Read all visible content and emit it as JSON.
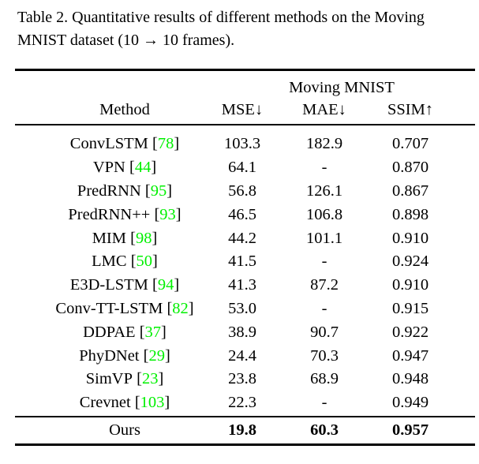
{
  "caption": {
    "lines": [
      "Table 2. Quantitative results of different methods on the Moving",
      "MNIST dataset (10 → 10 frames)."
    ]
  },
  "table": {
    "group_header": "Moving MNIST",
    "columns": {
      "method": "Method",
      "mse": "MSE↓",
      "mae": "MAE↓",
      "ssim": "SSIM↑"
    },
    "rows": [
      {
        "method": "ConvLSTM",
        "cite": "78",
        "mse": "103.3",
        "mae": "182.9",
        "ssim": "0.707"
      },
      {
        "method": "VPN",
        "cite": "44",
        "mse": "64.1",
        "mae": "-",
        "ssim": "0.870"
      },
      {
        "method": "PredRNN",
        "cite": "95",
        "mse": "56.8",
        "mae": "126.1",
        "ssim": "0.867"
      },
      {
        "method": "PredRNN++",
        "cite": "93",
        "mse": "46.5",
        "mae": "106.8",
        "ssim": "0.898"
      },
      {
        "method": "MIM",
        "cite": "98",
        "mse": "44.2",
        "mae": "101.1",
        "ssim": "0.910"
      },
      {
        "method": "LMC",
        "cite": "50",
        "mse": "41.5",
        "mae": "-",
        "ssim": "0.924"
      },
      {
        "method": "E3D-LSTM",
        "cite": "94",
        "mse": "41.3",
        "mae": "87.2",
        "ssim": "0.910"
      },
      {
        "method": "Conv-TT-LSTM",
        "cite": "82",
        "mse": "53.0",
        "mae": "-",
        "ssim": "0.915"
      },
      {
        "method": "DDPAE",
        "cite": "37",
        "mse": "38.9",
        "mae": "90.7",
        "ssim": "0.922"
      },
      {
        "method": "PhyDNet",
        "cite": "29",
        "mse": "24.4",
        "mae": "70.3",
        "ssim": "0.947"
      },
      {
        "method": "SimVP",
        "cite": "23",
        "mse": "23.8",
        "mae": "68.9",
        "ssim": "0.948"
      },
      {
        "method": "Crevnet",
        "cite": "103",
        "mse": "22.3",
        "mae": "-",
        "ssim": "0.949"
      }
    ],
    "ours": {
      "label": "Ours",
      "mse": "19.8",
      "mae": "60.3",
      "ssim": "0.957"
    }
  },
  "colors": {
    "citation_green": "#00f000",
    "text_black": "#000000",
    "background": "#ffffff"
  }
}
